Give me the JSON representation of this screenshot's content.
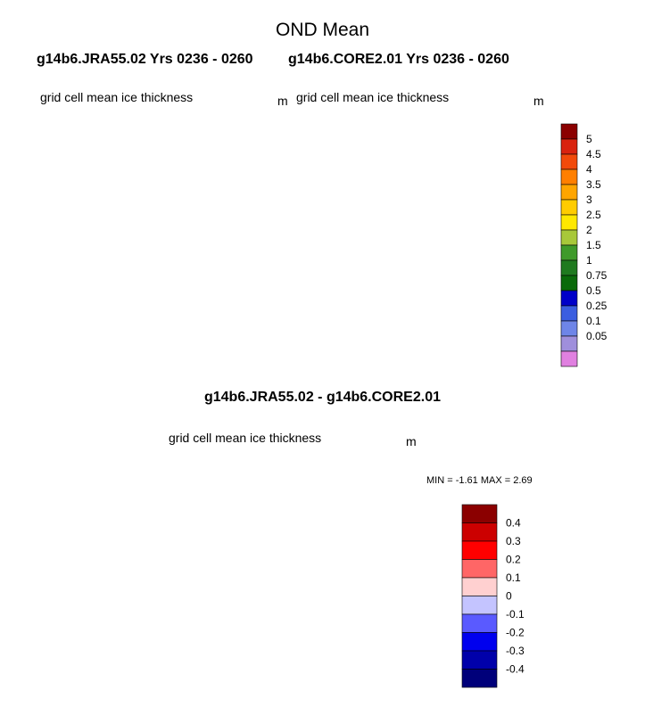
{
  "figure": {
    "title": "OND Mean",
    "run_a_title": "g14b6.JRA55.02  Yrs 0236 - 0260",
    "run_b_title": "g14b6.CORE2.01  Yrs 0236 - 0260",
    "difference_title": "g14b6.JRA55.02 - g14b6.CORE2.01"
  },
  "panels": [
    {
      "id": "jra55",
      "field_label": "grid cell mean ice thickness",
      "unit": "m"
    },
    {
      "id": "core2",
      "field_label": "grid cell mean ice thickness",
      "unit": "m"
    },
    {
      "id": "difference",
      "field_label": "grid cell mean ice thickness",
      "unit": "m",
      "min_max": "MIN =  -1.61 MAX =   2.69"
    }
  ],
  "thickness_colorbar": {
    "labels": [
      "5",
      "4.5",
      "4",
      "3.5",
      "3",
      "2.5",
      "2",
      "1.5",
      "1",
      "0.75",
      "0.5",
      "0.25",
      "0.1",
      "0.05"
    ],
    "colors": [
      "#8b0000",
      "#d9230f",
      "#f24a0a",
      "#ff7f00",
      "#ffa500",
      "#ffcc00",
      "#ffe800",
      "#a8c83a",
      "#3f9a2a",
      "#1f7a1f",
      "#0a6a0a",
      "#0000c8",
      "#3b5ee0",
      "#6e85e8",
      "#9f8fdc",
      "#e080e0"
    ]
  },
  "difference_colorbar": {
    "labels": [
      "0.4",
      "0.3",
      "0.2",
      "0.1",
      "0",
      "-0.1",
      "-0.2",
      "-0.3",
      "-0.4"
    ],
    "colors": [
      "#8b0000",
      "#cc0000",
      "#ff0000",
      "#ff6666",
      "#ffd0d0",
      "#c4c4ff",
      "#5a5aff",
      "#0000ee",
      "#0000aa",
      "#00007a"
    ]
  },
  "map_colors": {
    "land": "#c8c8c8",
    "ocean": "#ffffff",
    "pos_strong": "#cc0000",
    "pos_mid": "#ff3030",
    "pos_weak": "#ffd0d0",
    "neg_weak": "#c4c4ff",
    "neg_mid": "#3030ff",
    "neg_strong": "#00007a"
  }
}
